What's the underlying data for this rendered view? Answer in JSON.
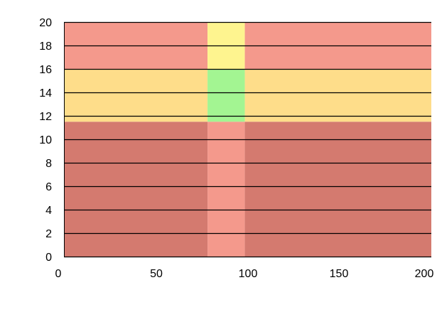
{
  "chart_data": {
    "type": "heatmap",
    "title": "",
    "xlabel": "",
    "ylabel": "",
    "xlim": [
      3,
      200
    ],
    "ylim": [
      0,
      20
    ],
    "x_ticks": [
      0,
      50,
      100,
      150,
      200
    ],
    "y_ticks": [
      0,
      2,
      4,
      6,
      8,
      10,
      12,
      14,
      16,
      18,
      20
    ],
    "x_tick_labels": [
      "0",
      "50",
      "100",
      "150",
      "200"
    ],
    "y_tick_labels": [
      "0",
      "2",
      "4",
      "6",
      "8",
      "10",
      "12",
      "14",
      "16",
      "18",
      "20"
    ],
    "horizontal_gridlines": [
      0,
      2,
      4,
      6,
      8,
      10,
      12,
      14,
      16,
      18,
      20
    ],
    "grid": "horizontal",
    "regions": [
      {
        "x": [
          3,
          80
        ],
        "y": [
          0,
          11.5
        ],
        "color": "#d47a6f"
      },
      {
        "x": [
          80,
          100
        ],
        "y": [
          0,
          11.5
        ],
        "color": "#f4998c"
      },
      {
        "x": [
          100,
          200
        ],
        "y": [
          0,
          11.5
        ],
        "color": "#d47a6f"
      },
      {
        "x": [
          3,
          80
        ],
        "y": [
          11.5,
          16
        ],
        "color": "#fedd8a"
      },
      {
        "x": [
          80,
          100
        ],
        "y": [
          11.5,
          16
        ],
        "color": "#a3f592"
      },
      {
        "x": [
          100,
          200
        ],
        "y": [
          11.5,
          16
        ],
        "color": "#fedd8a"
      },
      {
        "x": [
          3,
          80
        ],
        "y": [
          16,
          20
        ],
        "color": "#f4998c"
      },
      {
        "x": [
          80,
          100
        ],
        "y": [
          16,
          20
        ],
        "color": "#fef48f"
      },
      {
        "x": [
          100,
          200
        ],
        "y": [
          16,
          20
        ],
        "color": "#f4998c"
      }
    ]
  }
}
